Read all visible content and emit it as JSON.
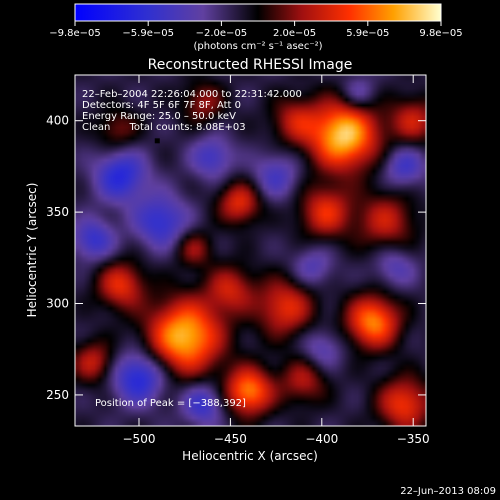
{
  "chart_data": {
    "type": "heatmap",
    "title": "Reconstructed RHESSI Image",
    "xlabel": "Heliocentric X (arcsec)",
    "ylabel": "Heliocentric Y (arcsec)",
    "xlim": [
      -535,
      -343
    ],
    "ylim": [
      233,
      425
    ],
    "x_ticks": [
      -500,
      -450,
      -400,
      -350
    ],
    "x_tick_labels": [
      "−500",
      "−450",
      "−400",
      "−350"
    ],
    "y_ticks": [
      250,
      300,
      350,
      400
    ],
    "y_tick_labels": [
      "250",
      "300",
      "350",
      "400"
    ],
    "colorbar": {
      "range": [
        -9.8e-05,
        9.8e-05
      ],
      "tick_labels": [
        "−9.8e−05",
        "−5.9e−05",
        "−2.0e−05",
        "2.0e−05",
        "5.9e−05",
        "9.8e−05"
      ],
      "units": "(photons cm⁻² s⁻¹ asec⁻²)"
    },
    "info_lines": [
      "22–Feb–2004 22:26:04.000 to 22:31:42.000",
      "Detectors: 4F 5F 6F 7F 8F, Att 0",
      "Energy Range: 25.0 – 50.0 keV",
      "Clean      Total counts: 8.08E+03"
    ],
    "peak_label": "Position of Peak = [−388,392]",
    "peak": [
      -388,
      392
    ],
    "marker": [
      -490,
      389
    ],
    "sources": [
      {
        "x": -388,
        "y": 392,
        "s": 13,
        "a": 1.0
      },
      {
        "x": -398,
        "y": 350,
        "s": 10,
        "a": 0.55
      },
      {
        "x": -365,
        "y": 345,
        "s": 11,
        "a": 0.45
      },
      {
        "x": -445,
        "y": 355,
        "s": 8,
        "a": 0.55
      },
      {
        "x": -475,
        "y": 282,
        "s": 14,
        "a": 0.95
      },
      {
        "x": -372,
        "y": 290,
        "s": 10,
        "a": 0.8
      },
      {
        "x": -420,
        "y": 298,
        "s": 11,
        "a": 0.55
      },
      {
        "x": -450,
        "y": 308,
        "s": 9,
        "a": 0.45
      },
      {
        "x": -510,
        "y": 310,
        "s": 9,
        "a": 0.55
      },
      {
        "x": -440,
        "y": 252,
        "s": 9,
        "a": 0.8
      },
      {
        "x": -355,
        "y": 245,
        "s": 10,
        "a": 0.6
      },
      {
        "x": -410,
        "y": 258,
        "s": 9,
        "a": 0.4
      },
      {
        "x": -415,
        "y": 400,
        "s": 9,
        "a": 0.4
      },
      {
        "x": -465,
        "y": 410,
        "s": 8,
        "a": 0.35
      },
      {
        "x": -512,
        "y": 395,
        "s": 8,
        "a": 0.3
      },
      {
        "x": -350,
        "y": 400,
        "s": 9,
        "a": 0.45
      },
      {
        "x": -525,
        "y": 268,
        "s": 8,
        "a": 0.45
      },
      {
        "x": -470,
        "y": 330,
        "s": 7,
        "a": 0.35
      },
      {
        "x": -510,
        "y": 370,
        "s": 10,
        "a": -0.55
      },
      {
        "x": -488,
        "y": 345,
        "s": 10,
        "a": -0.5
      },
      {
        "x": -525,
        "y": 335,
        "s": 8,
        "a": -0.45
      },
      {
        "x": -500,
        "y": 260,
        "s": 10,
        "a": -0.6
      },
      {
        "x": -465,
        "y": 245,
        "s": 8,
        "a": -0.45
      },
      {
        "x": -425,
        "y": 370,
        "s": 9,
        "a": -0.35
      },
      {
        "x": -460,
        "y": 380,
        "s": 8,
        "a": -0.4
      },
      {
        "x": -355,
        "y": 375,
        "s": 8,
        "a": -0.4
      },
      {
        "x": -360,
        "y": 320,
        "s": 8,
        "a": -0.3
      },
      {
        "x": -405,
        "y": 320,
        "s": 8,
        "a": -0.3
      },
      {
        "x": -400,
        "y": 275,
        "s": 8,
        "a": -0.3
      },
      {
        "x": -380,
        "y": 415,
        "s": 7,
        "a": -0.3
      }
    ],
    "grid": false
  },
  "footer": {
    "timestamp": "22–Jun–2013 08:09"
  }
}
